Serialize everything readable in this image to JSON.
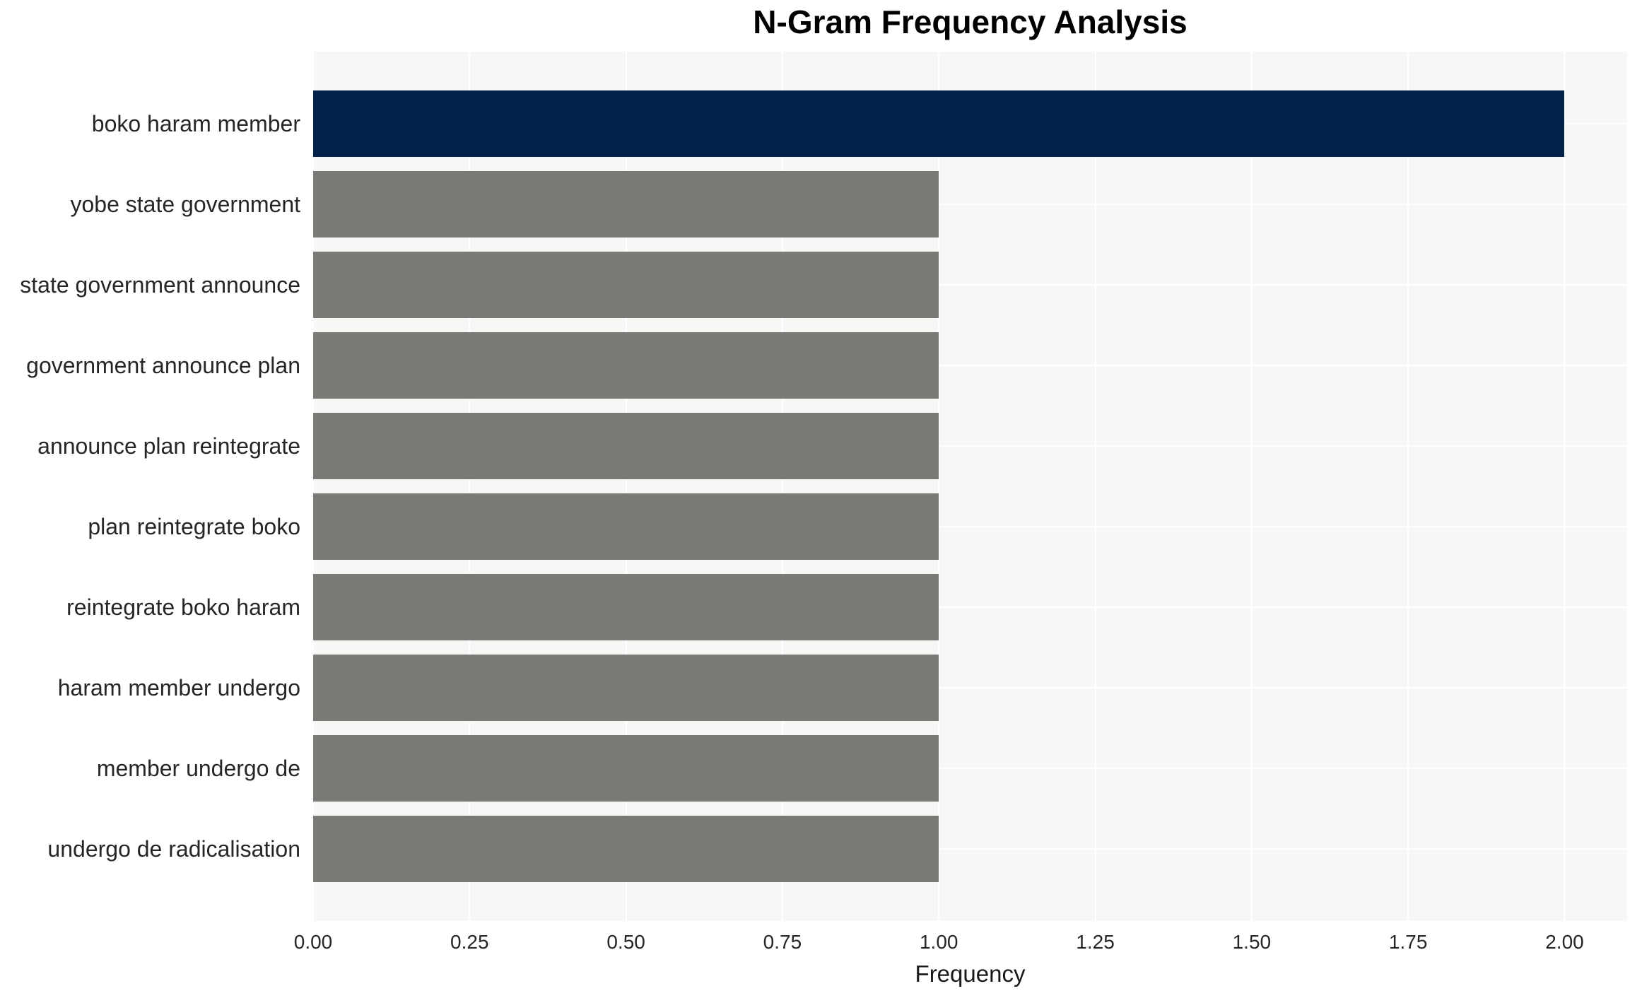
{
  "page": {
    "background_color": "#ffffff"
  },
  "chart_data": {
    "type": "bar",
    "orientation": "horizontal",
    "title": "N-Gram Frequency Analysis",
    "xlabel": "Frequency",
    "ylabel": "",
    "categories": [
      "boko haram member",
      "yobe state government",
      "state government announce",
      "government announce plan",
      "announce plan reintegrate",
      "plan reintegrate boko",
      "reintegrate boko haram",
      "haram member undergo",
      "member undergo de",
      "undergo de radicalisation"
    ],
    "values": [
      2,
      1,
      1,
      1,
      1,
      1,
      1,
      1,
      1,
      1
    ],
    "xlim": [
      0,
      2.1
    ],
    "xticks": [
      0,
      0.25,
      0.5,
      0.75,
      1.0,
      1.25,
      1.5,
      1.75,
      2.0
    ],
    "xtick_labels": [
      "0.00",
      "0.25",
      "0.50",
      "0.75",
      "1.00",
      "1.25",
      "1.50",
      "1.75",
      "2.00"
    ],
    "highlight_index": 0,
    "colors": {
      "highlight_bar": "#02224a",
      "default_bar": "#7b7a76",
      "plot_background": "#f7f7f6",
      "gridline": "#ffffff",
      "title_text": "#000000",
      "label_text": "#262626"
    },
    "grid": true,
    "legend": null
  }
}
